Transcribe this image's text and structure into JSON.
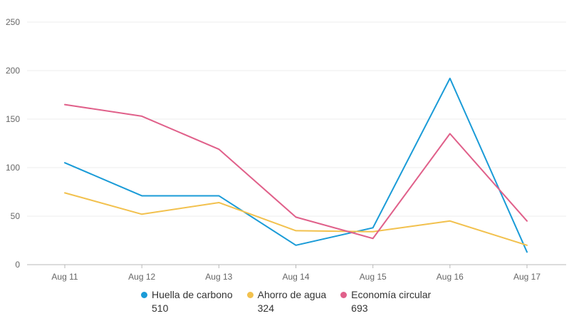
{
  "chart_data": {
    "type": "line",
    "categories": [
      "Aug 11",
      "Aug 12",
      "Aug 13",
      "Aug 14",
      "Aug 15",
      "Aug 16",
      "Aug 17"
    ],
    "series": [
      {
        "name": "Huella de carbono",
        "color": "#1a9bd7",
        "values": [
          105,
          71,
          71,
          20,
          38,
          192,
          13
        ],
        "total": "510"
      },
      {
        "name": "Ahorro de agua",
        "color": "#f2c14e",
        "values": [
          74,
          52,
          64,
          35,
          34,
          45,
          20
        ],
        "total": "324"
      },
      {
        "name": "Economía circular",
        "color": "#e0608a",
        "values": [
          165,
          153,
          119,
          49,
          27,
          135,
          45
        ],
        "total": "693"
      }
    ],
    "ylim": [
      0,
      250
    ],
    "yticks": [
      0,
      50,
      100,
      150,
      200,
      250
    ],
    "grid": true,
    "legend_position": "bottom"
  }
}
